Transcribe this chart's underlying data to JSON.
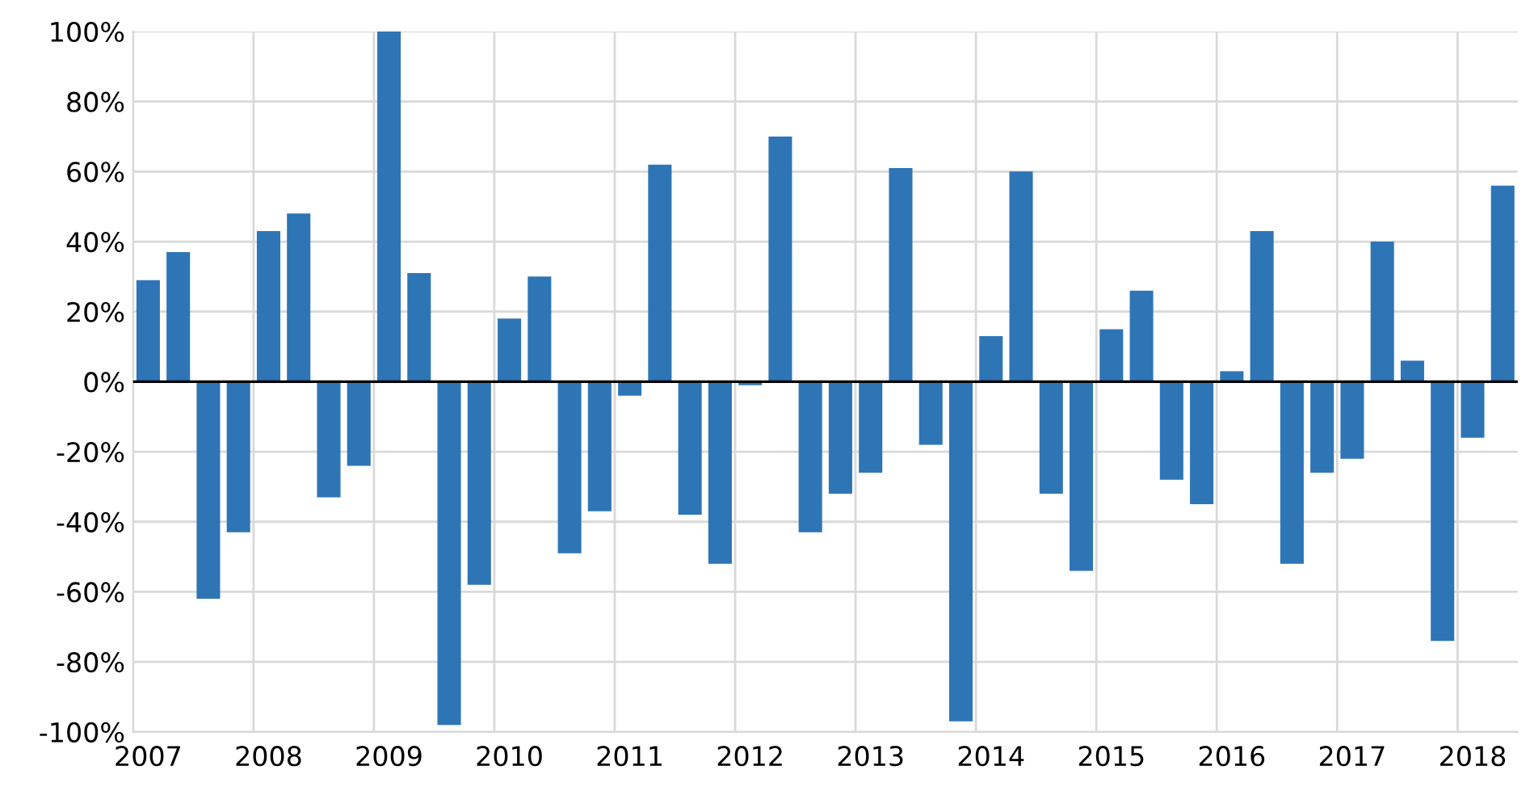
{
  "chart_data": {
    "type": "bar",
    "categories": [
      "2007",
      null,
      null,
      null,
      "2008",
      null,
      null,
      null,
      "2009",
      null,
      null,
      null,
      "2010",
      null,
      null,
      null,
      "2011",
      null,
      null,
      null,
      "2012",
      null,
      null,
      null,
      "2013",
      null,
      null,
      null,
      "2014",
      null,
      null,
      null,
      "2015",
      null,
      null,
      null,
      "2016",
      null,
      null,
      null,
      "2017",
      null,
      null,
      null,
      "2018",
      null
    ],
    "values": [
      29,
      37,
      -62,
      -43,
      43,
      48,
      -33,
      -24,
      100,
      31,
      -98,
      -58,
      18,
      30,
      -49,
      -37,
      -4,
      62,
      -38,
      -52,
      -1,
      70,
      -43,
      -32,
      -26,
      61,
      -18,
      -97,
      13,
      60,
      -32,
      -54,
      15,
      26,
      -28,
      -35,
      3,
      43,
      -52,
      -26,
      -22,
      40,
      6,
      -74,
      -16,
      56
    ],
    "color": "#2e75b6",
    "ylim": [
      -100,
      100
    ],
    "yticks": [
      {
        "value": -100,
        "label": "-100%"
      },
      {
        "value": -80,
        "label": "-80%"
      },
      {
        "value": -60,
        "label": "-60%"
      },
      {
        "value": -40,
        "label": "-40%"
      },
      {
        "value": -20,
        "label": "-20%"
      },
      {
        "value": 0,
        "label": "0%"
      },
      {
        "value": 20,
        "label": "20%"
      },
      {
        "value": 40,
        "label": "40%"
      },
      {
        "value": 60,
        "label": "60%"
      },
      {
        "value": 80,
        "label": "80%"
      },
      {
        "value": 100,
        "label": "100%"
      }
    ],
    "grid": true
  }
}
